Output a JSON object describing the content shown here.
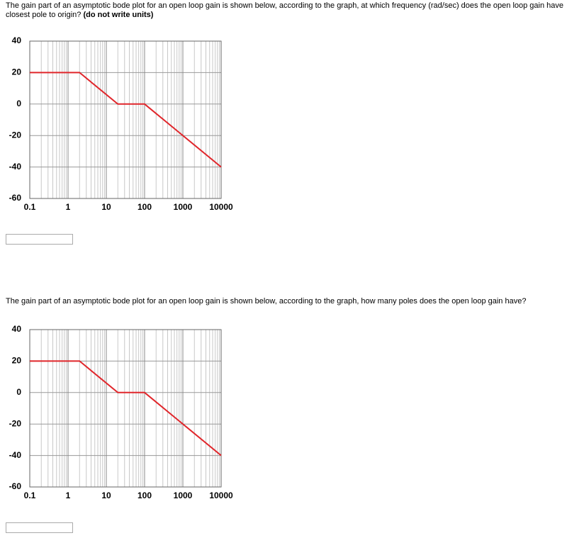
{
  "questions": [
    {
      "text": "The gain part of an asymptotic bode plot for an open loop gain is shown below, according to the graph, at which frequency (rad/sec) does the open loop gain have closest pole to origin?",
      "note": "(do not write units)",
      "chart": {
        "type": "line",
        "x": [
          0.1,
          2,
          20,
          100,
          10000
        ],
        "values": [
          20,
          20,
          0,
          0,
          -40
        ],
        "color": "#e0262b",
        "xlim": [
          0.1,
          10000
        ],
        "xticks": [
          0.1,
          1,
          10,
          100,
          1000,
          10000
        ],
        "xlog": true,
        "ylim": [
          -60,
          40
        ],
        "yticks": [
          -60,
          -40,
          -20,
          0,
          20,
          40
        ],
        "grid": true
      }
    },
    {
      "text": "The gain part of an asymptotic bode plot for an open loop gain is shown below, according to the graph, how many poles does the open loop gain have?",
      "chart": {
        "type": "line",
        "x": [
          0.1,
          2,
          20,
          100,
          10000
        ],
        "values": [
          20,
          20,
          0,
          0,
          -40
        ],
        "color": "#e0262b",
        "xlim": [
          0.1,
          10000
        ],
        "xticks": [
          0.1,
          1,
          10,
          100,
          1000,
          10000
        ],
        "xlog": true,
        "ylim": [
          -60,
          40
        ],
        "yticks": [
          -60,
          -40,
          -20,
          0,
          20,
          40
        ],
        "grid": true
      }
    }
  ]
}
